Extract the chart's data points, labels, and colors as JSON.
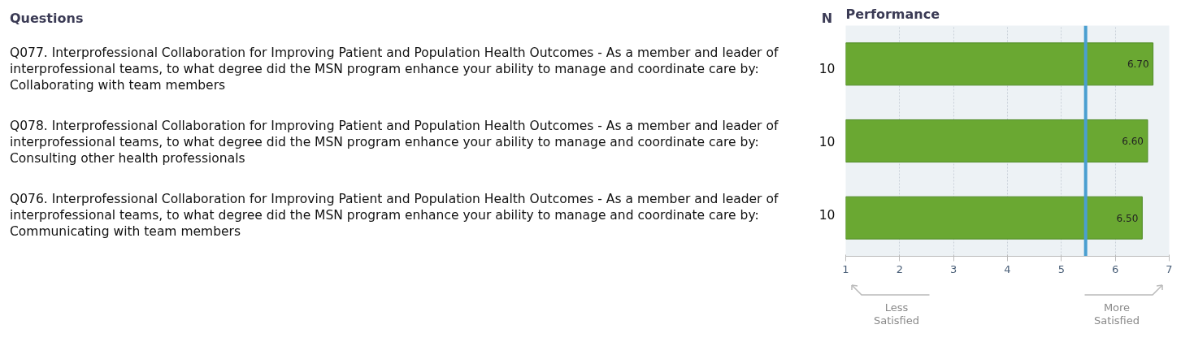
{
  "chart_data": {
    "type": "bar",
    "orientation": "horizontal",
    "title": "Performance",
    "ylabel": "Questions",
    "y2label": "N",
    "categories": [
      "Q077. Interprofessional Collaboration for Improving Patient and Population Health Outcomes - As a member and leader of interprofessional teams, to what degree did the MSN program enhance your ability to manage and coordinate care by: Collaborating with team members",
      "Q078. Interprofessional Collaboration for Improving Patient and Population Health Outcomes - As a member and leader of interprofessional teams, to what degree did the MSN program enhance your ability to manage and coordinate care by: Consulting other health professionals",
      "Q076. Interprofessional Collaboration for Improving Patient and Population Health Outcomes - As a member and leader of interprofessional teams, to what degree did the MSN program enhance your ability to manage and coordinate care by: Communicating with team members"
    ],
    "y2_categories": [
      "10",
      "10",
      "10"
    ],
    "values": [
      6.7,
      6.6,
      6.5
    ],
    "color": "#6aa832",
    "value_labels": [
      "6.70",
      "6.60",
      "6.50"
    ],
    "xlim": [
      1,
      7
    ],
    "xticks": [
      1,
      2,
      3,
      4,
      5,
      6,
      7
    ],
    "grid": "x",
    "ref_lines": [
      {
        "axis": "x",
        "value": 5.45,
        "color": "#4a9fd0"
      }
    ],
    "annotations": [
      "Less Satisfied",
      "More Satisfied"
    ]
  }
}
